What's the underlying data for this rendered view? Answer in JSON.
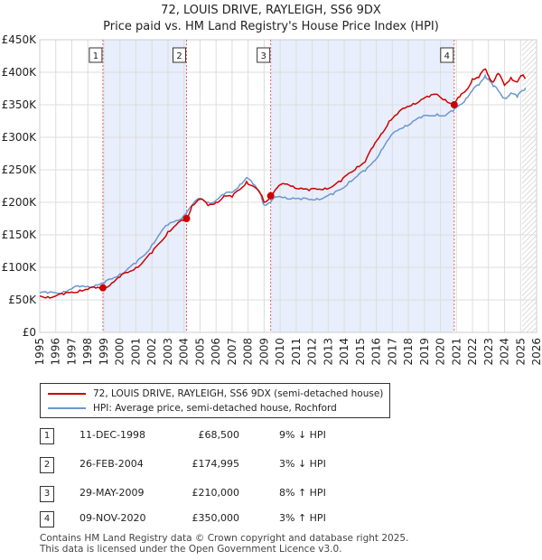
{
  "title_line1": "72, LOUIS DRIVE, RAYLEIGH, SS6 9DX",
  "title_line2": "Price paid vs. HM Land Registry's House Price Index (HPI)",
  "chart_data": {
    "type": "line",
    "title": "72, LOUIS DRIVE, RAYLEIGH, SS6 9DX — Price paid vs. HM Land Registry's House Price Index (HPI)",
    "xlabel": "",
    "ylabel": "",
    "xlim": [
      1995,
      2026
    ],
    "ylim": [
      0,
      450000
    ],
    "x_ticks": [
      "1995",
      "1996",
      "1997",
      "1998",
      "1999",
      "2000",
      "2001",
      "2002",
      "2003",
      "2004",
      "2005",
      "2006",
      "2007",
      "2008",
      "2009",
      "2010",
      "2011",
      "2012",
      "2013",
      "2014",
      "2015",
      "2016",
      "2017",
      "2018",
      "2019",
      "2020",
      "2021",
      "2022",
      "2023",
      "2024",
      "2025",
      "2026"
    ],
    "y_ticks": [
      {
        "value": 0,
        "label": "£0"
      },
      {
        "value": 50000,
        "label": "£50K"
      },
      {
        "value": 100000,
        "label": "£100K"
      },
      {
        "value": 150000,
        "label": "£150K"
      },
      {
        "value": 200000,
        "label": "£200K"
      },
      {
        "value": 250000,
        "label": "£250K"
      },
      {
        "value": 300000,
        "label": "£300K"
      },
      {
        "value": 350000,
        "label": "£350K"
      },
      {
        "value": 400000,
        "label": "£400K"
      },
      {
        "value": 450000,
        "label": "£450K"
      }
    ],
    "grid": true,
    "legend_position": "below",
    "series": [
      {
        "name": "72, LOUIS DRIVE, RAYLEIGH, SS6 9DX (semi-detached house)",
        "color": "#cc0000",
        "x": [
          1995.0,
          1995.5,
          1996.0,
          1996.5,
          1997.0,
          1997.5,
          1998.0,
          1998.5,
          1998.94,
          1999.5,
          2000.0,
          2000.5,
          2001.0,
          2001.5,
          2002.0,
          2002.5,
          2003.0,
          2003.5,
          2004.0,
          2004.16,
          2004.5,
          2005.0,
          2005.5,
          2006.0,
          2006.5,
          2007.0,
          2007.5,
          2007.9,
          2008.3,
          2008.8,
          2009.0,
          2009.41,
          2009.8,
          2010.3,
          2010.8,
          2011.3,
          2011.8,
          2012.3,
          2012.8,
          2013.3,
          2013.8,
          2014.3,
          2014.8,
          2015.3,
          2015.8,
          2016.3,
          2016.8,
          2017.3,
          2017.8,
          2018.3,
          2018.8,
          2019.3,
          2019.8,
          2020.3,
          2020.86,
          2021.2,
          2021.6,
          2022.0,
          2022.4,
          2022.8,
          2023.0,
          2023.3,
          2023.6,
          2024.0,
          2024.4,
          2024.8,
          2025.1,
          2025.3
        ],
        "values": [
          56000,
          55000,
          56000,
          58000,
          62000,
          65000,
          66000,
          68000,
          68500,
          76000,
          85000,
          92000,
          100000,
          110000,
          122000,
          138000,
          155000,
          165000,
          172000,
          174995,
          195000,
          205000,
          195000,
          200000,
          210000,
          208000,
          220000,
          232000,
          225000,
          212000,
          200000,
          210000,
          222000,
          228000,
          225000,
          222000,
          218000,
          220000,
          222000,
          225000,
          232000,
          245000,
          255000,
          262000,
          285000,
          305000,
          325000,
          335000,
          345000,
          352000,
          358000,
          362000,
          366000,
          358000,
          350000,
          362000,
          372000,
          390000,
          392000,
          405000,
          395000,
          385000,
          398000,
          380000,
          392000,
          385000,
          395000,
          390000
        ]
      },
      {
        "name": "HPI: Average price, semi-detached house, Rochford",
        "color": "#6b96cf",
        "x": [
          1995.0,
          1995.5,
          1996.0,
          1996.5,
          1997.0,
          1997.5,
          1998.0,
          1998.5,
          1999.0,
          1999.5,
          2000.0,
          2000.5,
          2001.0,
          2001.5,
          2002.0,
          2002.5,
          2003.0,
          2003.5,
          2004.0,
          2004.5,
          2005.0,
          2005.5,
          2006.0,
          2006.5,
          2007.0,
          2007.5,
          2007.9,
          2008.3,
          2008.8,
          2009.0,
          2009.4,
          2009.8,
          2010.3,
          2010.8,
          2011.3,
          2011.8,
          2012.3,
          2012.8,
          2013.3,
          2013.8,
          2014.3,
          2014.8,
          2015.3,
          2015.8,
          2016.3,
          2016.8,
          2017.3,
          2017.8,
          2018.3,
          2018.8,
          2019.3,
          2019.8,
          2020.3,
          2020.8,
          2021.2,
          2021.6,
          2022.0,
          2022.4,
          2022.8,
          2023.0,
          2023.3,
          2023.6,
          2024.0,
          2024.4,
          2024.8,
          2025.1,
          2025.3
        ],
        "values": [
          61000,
          60000,
          61000,
          63000,
          67000,
          70000,
          71000,
          73000,
          75000,
          82000,
          90000,
          98000,
          106000,
          118000,
          135000,
          152000,
          165000,
          172000,
          180000,
          195000,
          206000,
          200000,
          203000,
          212000,
          215000,
          228000,
          238000,
          228000,
          212000,
          196000,
          200000,
          208000,
          208000,
          207000,
          204000,
          204000,
          206000,
          208000,
          212000,
          220000,
          232000,
          240000,
          248000,
          262000,
          280000,
          298000,
          310000,
          318000,
          325000,
          330000,
          333000,
          336000,
          333000,
          340000,
          350000,
          360000,
          372000,
          380000,
          395000,
          390000,
          378000,
          372000,
          360000,
          368000,
          362000,
          372000,
          376000
        ]
      }
    ],
    "transactions": [
      {
        "num": "1",
        "date": "11-DEC-1998",
        "x": 1998.94,
        "price": "£68,500",
        "price_value": 68500,
        "hpi": "9% ↓ HPI"
      },
      {
        "num": "2",
        "date": "26-FEB-2004",
        "x": 2004.16,
        "price": "£174,995",
        "price_value": 174995,
        "hpi": "3% ↓ HPI"
      },
      {
        "num": "3",
        "date": "29-MAY-2009",
        "x": 2009.41,
        "price": "£210,000",
        "price_value": 210000,
        "hpi": "8% ↑ HPI"
      },
      {
        "num": "4",
        "date": "09-NOV-2020",
        "x": 2020.86,
        "price": "£350,000",
        "price_value": 350000,
        "hpi": "3% ↑ HPI"
      }
    ],
    "forecast_start": 2025.1
  },
  "legend": {
    "property_label": "72, LOUIS DRIVE, RAYLEIGH, SS6 9DX (semi-detached house)",
    "hpi_label": "HPI: Average price, semi-detached house, Rochford"
  },
  "footer": {
    "line1": "Contains HM Land Registry data © Crown copyright and database right 2025.",
    "line2": "This data is licensed under the Open Government Licence v3.0."
  }
}
